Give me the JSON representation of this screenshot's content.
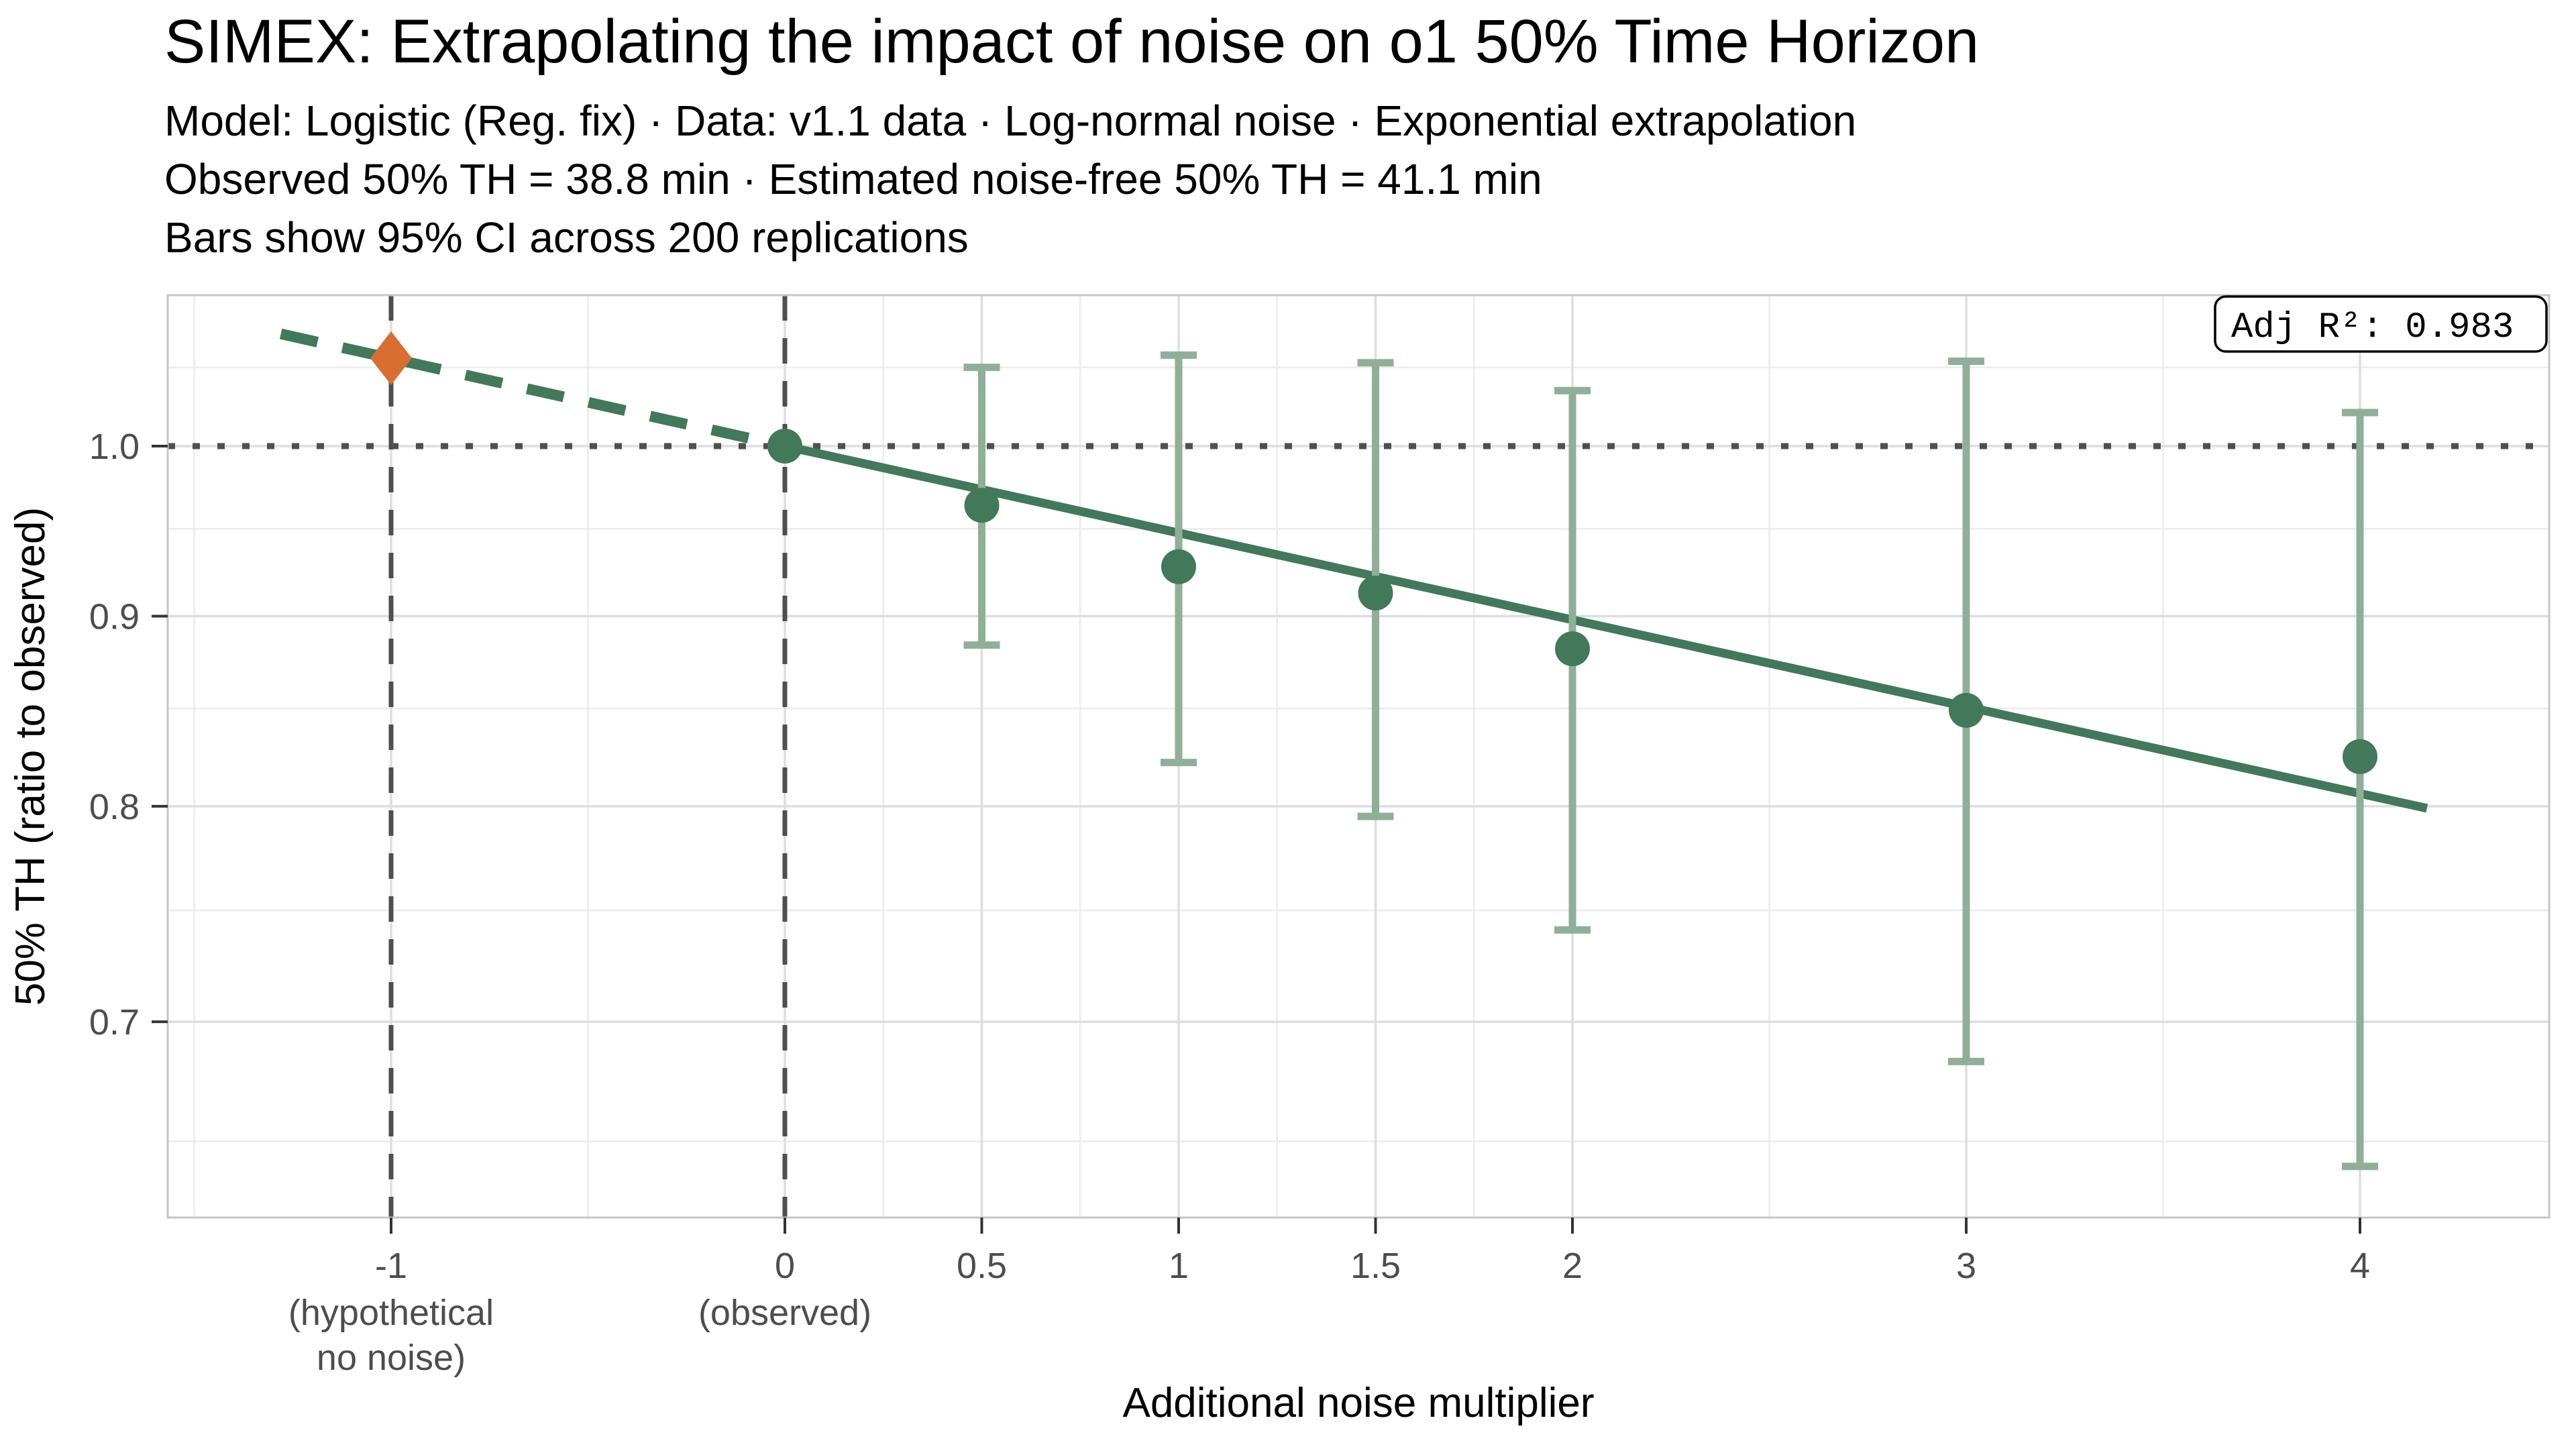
{
  "chart_data": {
    "type": "scatter",
    "title": "SIMEX: Extrapolating the impact of noise on o1 50% Time Horizon",
    "subtitle_lines": [
      "Model: Logistic (Reg. fix) · Data: v1.1 data · Log-normal noise · Exponential extrapolation",
      "Observed 50% TH = 38.8 min · Estimated noise-free 50% TH = 41.1 min",
      "Bars show 95% CI across 200 replications"
    ],
    "xlabel": "Additional noise multiplier",
    "ylabel": "50% TH (ratio to observed)",
    "annotation": "Adj R²: 0.983",
    "y_scale": "log",
    "xlim": [
      -1.567,
      4.48
    ],
    "ylim": [
      0.62,
      1.098
    ],
    "x_major_ticks": [
      {
        "value": -1,
        "label": "-1",
        "sublabel": [
          "(hypothetical",
          "no noise)"
        ]
      },
      {
        "value": 0,
        "label": "0",
        "sublabel": [
          "(observed)"
        ]
      },
      {
        "value": 0.5,
        "label": "0.5",
        "sublabel": []
      },
      {
        "value": 1,
        "label": "1",
        "sublabel": []
      },
      {
        "value": 1.5,
        "label": "1.5",
        "sublabel": []
      },
      {
        "value": 2,
        "label": "2",
        "sublabel": []
      },
      {
        "value": 3,
        "label": "3",
        "sublabel": []
      },
      {
        "value": 4,
        "label": "4",
        "sublabel": []
      }
    ],
    "x_minor_ticks": [
      -1.5,
      -0.5,
      0.25,
      0.75,
      1.25,
      1.75,
      2.5,
      3.5
    ],
    "y_major_ticks": [
      {
        "value": 1.0,
        "label": "1.0"
      },
      {
        "value": 0.9,
        "label": "0.9"
      },
      {
        "value": 0.8,
        "label": "0.8"
      },
      {
        "value": 0.7,
        "label": "0.7"
      }
    ],
    "y_minor_ticks": [
      1.05,
      0.95,
      0.85,
      0.75,
      0.65
    ],
    "reference_lines": {
      "dotted_horizontal_y": 1.0,
      "dashed_vertical_x": [
        -1,
        0
      ]
    },
    "points": [
      {
        "x": 0,
        "y": 1.0,
        "ci_low": null,
        "ci_high": null
      },
      {
        "x": 0.5,
        "y": 0.964,
        "ci_low": 0.884,
        "ci_high": 1.05
      },
      {
        "x": 1,
        "y": 0.928,
        "ci_low": 0.822,
        "ci_high": 1.058
      },
      {
        "x": 1.5,
        "y": 0.913,
        "ci_low": 0.795,
        "ci_high": 1.053
      },
      {
        "x": 2,
        "y": 0.882,
        "ci_low": 0.741,
        "ci_high": 1.035
      },
      {
        "x": 3,
        "y": 0.849,
        "ci_low": 0.683,
        "ci_high": 1.054
      },
      {
        "x": 4,
        "y": 0.825,
        "ci_low": 0.64,
        "ci_high": 1.021
      }
    ],
    "extrapolated_point": {
      "x": -1,
      "y": 1.056,
      "marker": "diamond"
    },
    "trend": {
      "dashed_segment": [
        {
          "x": -1.28,
          "y": 1.072
        },
        {
          "x": 0,
          "y": 1.0
        }
      ],
      "solid_segment": [
        {
          "x": 0,
          "y": 1.0
        },
        {
          "x": 4.17,
          "y": 0.799
        }
      ]
    },
    "colors": {
      "point_green": "#41795A",
      "ci_green": "#8FAF98",
      "extrapolated_orange": "#D96E31",
      "reference_gray": "#4F4F4F",
      "grid_major": "#DEDEDE",
      "grid_minor": "#ECECEC",
      "panel_border": "#C6C6C6",
      "tick_label_gray": "#4D4D4D",
      "tick_mark": "#333333",
      "text_black": "#000000"
    }
  }
}
